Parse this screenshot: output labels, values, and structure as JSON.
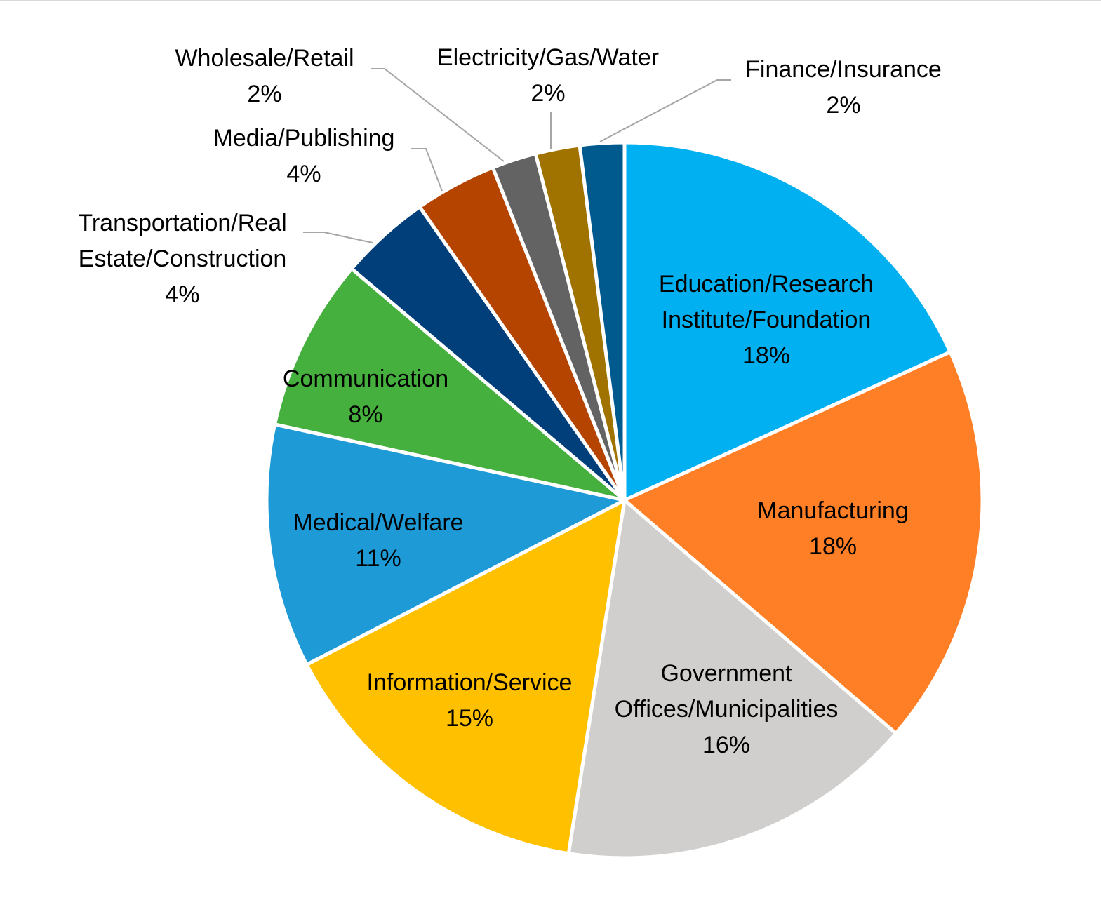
{
  "chart_data": {
    "type": "pie",
    "title": "",
    "start_angle_deg": 0,
    "direction": "clockwise",
    "slices": [
      {
        "name": "Education/Research Institute/Foundation",
        "label_lines": [
          "Education/Research",
          "Institute/Foundation"
        ],
        "pct_label": "18%",
        "value": 18.2,
        "color": "#00b0f0",
        "label_pos": "inside"
      },
      {
        "name": "Manufacturing",
        "label_lines": [
          "Manufacturing"
        ],
        "pct_label": "18%",
        "value": 18.1,
        "color": "#ff7f27",
        "label_pos": "inside"
      },
      {
        "name": "Government Offices/Municipalities",
        "label_lines": [
          "Government",
          "Offices/Municipalities"
        ],
        "pct_label": "16%",
        "value": 16.2,
        "color": "#d0cfcd",
        "label_pos": "inside"
      },
      {
        "name": "Information/Service",
        "label_lines": [
          "Information/Service"
        ],
        "pct_label": "15%",
        "value": 14.9,
        "color": "#ffc000",
        "label_pos": "inside"
      },
      {
        "name": "Medical/Welfare",
        "label_lines": [
          "Medical/Welfare"
        ],
        "pct_label": "11%",
        "value": 11.0,
        "color": "#1e9ad6",
        "label_pos": "inside"
      },
      {
        "name": "Communication",
        "label_lines": [
          "Communication"
        ],
        "pct_label": "8%",
        "value": 7.8,
        "color": "#45b03d",
        "label_pos": "inside"
      },
      {
        "name": "Transportation/Real Estate/Construction",
        "label_lines": [
          "Transportation/Real",
          "Estate/Construction"
        ],
        "pct_label": "4%",
        "value": 4.1,
        "color": "#003f7a",
        "label_pos": "outside"
      },
      {
        "name": "Media/Publishing",
        "label_lines": [
          "Media/Publishing"
        ],
        "pct_label": "4%",
        "value": 3.7,
        "color": "#b54400",
        "label_pos": "outside"
      },
      {
        "name": "Wholesale/Retail",
        "label_lines": [
          "Wholesale/Retail"
        ],
        "pct_label": "2%",
        "value": 2.0,
        "color": "#636363",
        "label_pos": "outside"
      },
      {
        "name": "Electricity/Gas/Water",
        "label_lines": [
          "Electricity/Gas/Water"
        ],
        "pct_label": "2%",
        "value": 2.0,
        "color": "#a07300",
        "label_pos": "outside"
      },
      {
        "name": "Finance/Insurance",
        "label_lines": [
          "Finance/Insurance"
        ],
        "pct_label": "2%",
        "value": 2.0,
        "color": "#005a8e",
        "label_pos": "outside"
      }
    ]
  }
}
